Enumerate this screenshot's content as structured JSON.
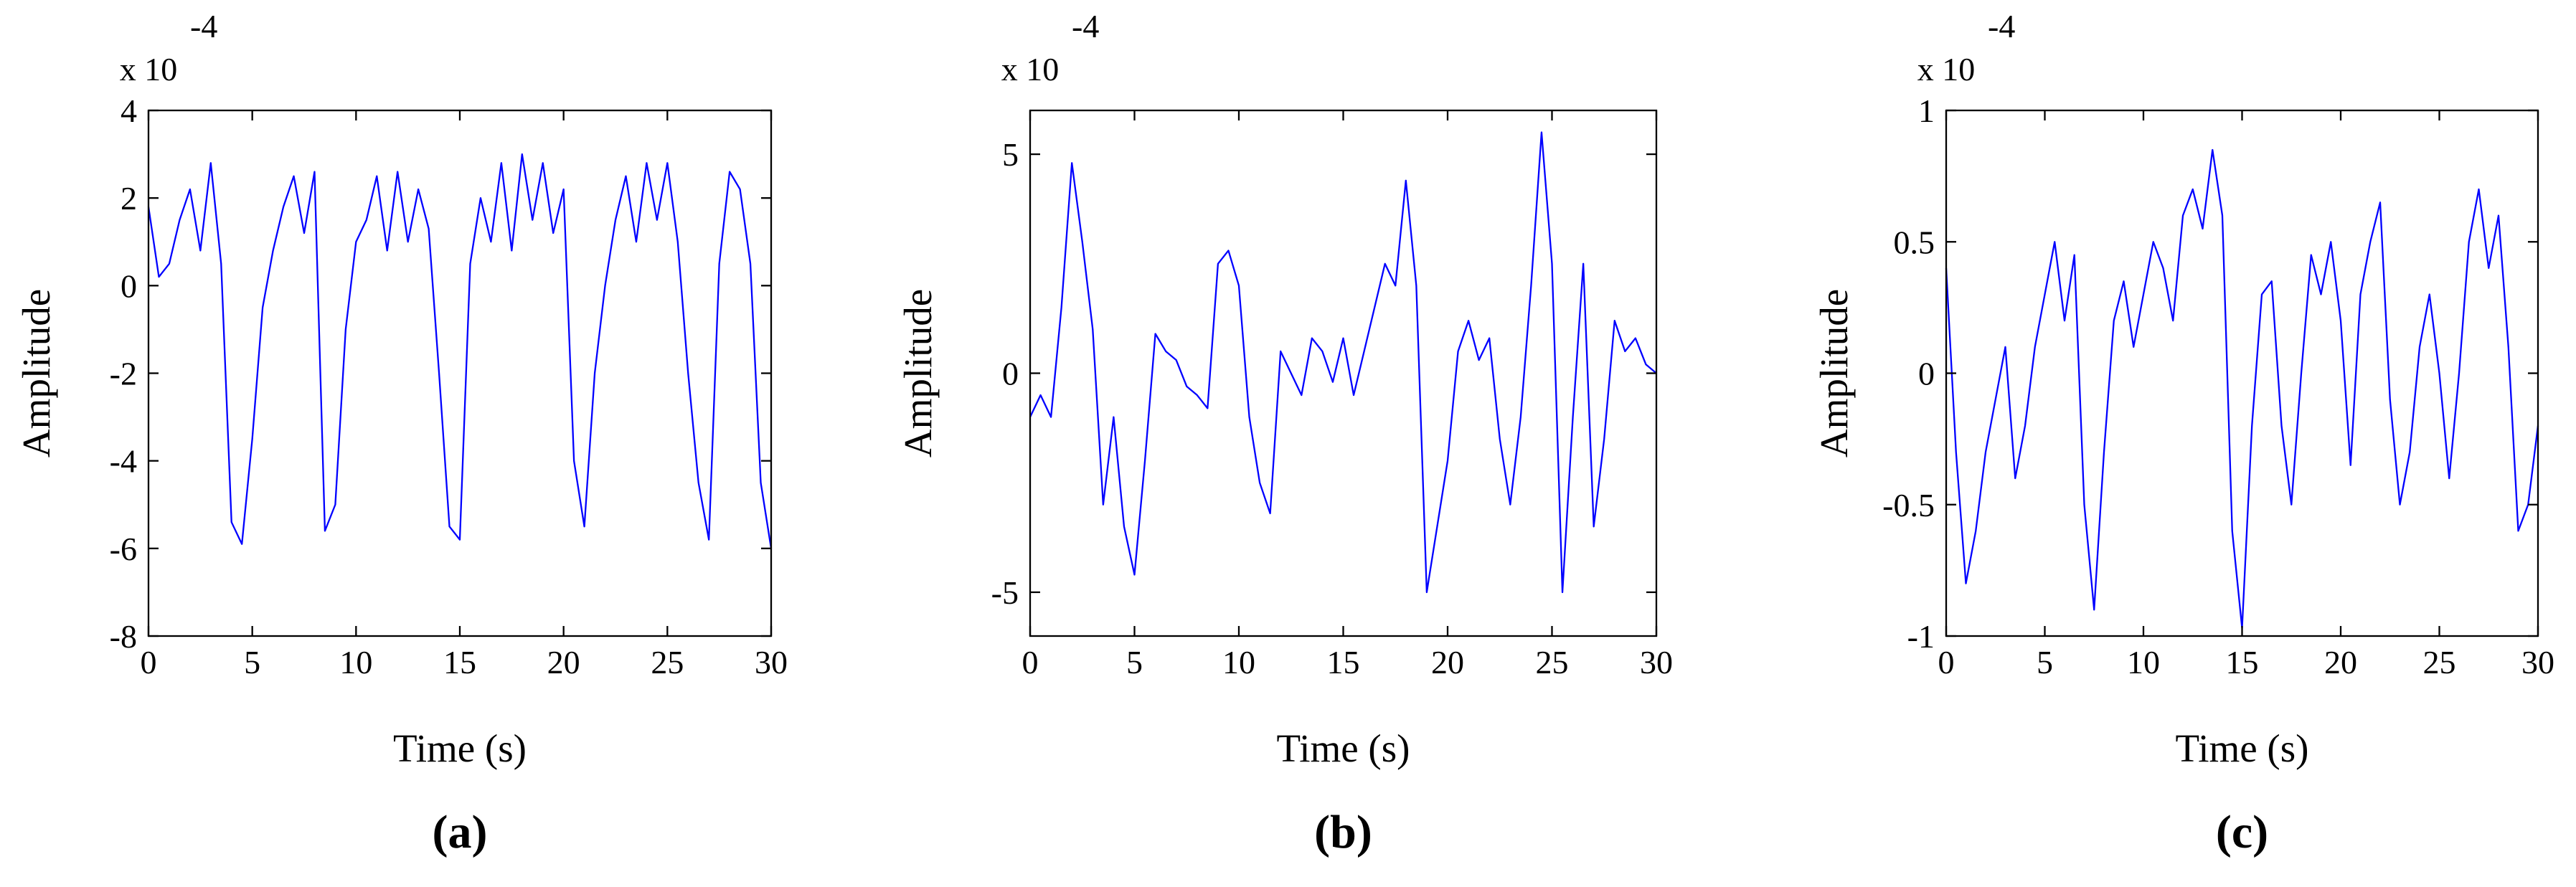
{
  "chart_data": [
    {
      "type": "line",
      "multiplier_base": "x 10",
      "multiplier_exponent": "-4",
      "xlabel": "Time (s)",
      "ylabel": "Amplitude",
      "caption": "(a)",
      "xlim": [
        0,
        30
      ],
      "xticks": [
        0,
        5,
        10,
        15,
        20,
        25,
        30
      ],
      "ylim": [
        -8,
        4
      ],
      "yticks": [
        -8,
        -6,
        -4,
        -2,
        0,
        2,
        4
      ],
      "x": [
        0,
        0.5,
        1,
        1.5,
        2,
        2.5,
        3,
        3.5,
        4,
        4.5,
        5,
        5.5,
        6,
        6.5,
        7,
        7.5,
        8,
        8.5,
        9,
        9.5,
        10,
        10.5,
        11,
        11.5,
        12,
        12.5,
        13,
        13.5,
        14,
        14.5,
        15,
        15.5,
        16,
        16.5,
        17,
        17.5,
        18,
        18.5,
        19,
        19.5,
        20,
        20.5,
        21,
        21.5,
        22,
        22.5,
        23,
        23.5,
        24,
        24.5,
        25,
        25.5,
        26,
        26.5,
        27,
        27.5,
        28,
        28.5,
        29,
        29.5,
        30
      ],
      "series": [
        {
          "color": "#0000ff",
          "values": [
            1.8,
            0.2,
            0.5,
            1.5,
            2.2,
            0.8,
            2.8,
            0.5,
            -5.4,
            -5.9,
            -3.5,
            -0.5,
            0.8,
            1.8,
            2.5,
            1.2,
            2.6,
            -5.6,
            -5.0,
            -1.0,
            1.0,
            1.5,
            2.5,
            0.8,
            2.6,
            1.0,
            2.2,
            1.3,
            -2.0,
            -5.5,
            -5.8,
            0.5,
            2.0,
            1.0,
            2.8,
            0.8,
            3.0,
            1.5,
            2.8,
            1.2,
            2.2,
            -4.0,
            -5.5,
            -2.0,
            0.0,
            1.5,
            2.5,
            1.0,
            2.8,
            1.5,
            2.8,
            1.0,
            -2.0,
            -4.5,
            -5.8,
            0.5,
            2.6,
            2.2,
            0.5,
            -4.5,
            -6.0
          ]
        }
      ]
    },
    {
      "type": "line",
      "multiplier_base": "x 10",
      "multiplier_exponent": "-4",
      "xlabel": "Time (s)",
      "ylabel": "Amplitude",
      "caption": "(b)",
      "xlim": [
        0,
        30
      ],
      "xticks": [
        0,
        5,
        10,
        15,
        20,
        25,
        30
      ],
      "ylim": [
        -6,
        6
      ],
      "yticks": [
        -5,
        0,
        5
      ],
      "x": [
        0,
        0.5,
        1,
        1.5,
        2,
        2.5,
        3,
        3.5,
        4,
        4.5,
        5,
        5.5,
        6,
        6.5,
        7,
        7.5,
        8,
        8.5,
        9,
        9.5,
        10,
        10.5,
        11,
        11.5,
        12,
        12.5,
        13,
        13.5,
        14,
        14.5,
        15,
        15.5,
        16,
        16.5,
        17,
        17.5,
        18,
        18.5,
        19,
        19.5,
        20,
        20.5,
        21,
        21.5,
        22,
        22.5,
        23,
        23.5,
        24,
        24.5,
        25,
        25.5,
        26,
        26.5,
        27,
        27.5,
        28,
        28.5,
        29,
        29.5,
        30
      ],
      "series": [
        {
          "color": "#0000ff",
          "values": [
            -1.0,
            -0.5,
            -1.0,
            1.5,
            4.8,
            3.0,
            1.0,
            -3.0,
            -1.0,
            -3.5,
            -4.6,
            -2.0,
            0.9,
            0.5,
            0.3,
            -0.3,
            -0.5,
            -0.8,
            2.5,
            2.8,
            2.0,
            -1.0,
            -2.5,
            -3.2,
            0.5,
            0.0,
            -0.5,
            0.8,
            0.5,
            -0.2,
            0.8,
            -0.5,
            0.5,
            1.5,
            2.5,
            2.0,
            4.4,
            2.0,
            -5.0,
            -3.5,
            -2.0,
            0.5,
            1.2,
            0.3,
            0.8,
            -1.5,
            -3.0,
            -1.0,
            2.0,
            5.5,
            2.5,
            -5.0,
            -1.0,
            2.5,
            -3.5,
            -1.5,
            1.2,
            0.5,
            0.8,
            0.2,
            0.0
          ]
        }
      ]
    },
    {
      "type": "line",
      "multiplier_base": "x 10",
      "multiplier_exponent": "-4",
      "xlabel": "Time (s)",
      "ylabel": "Amplitude",
      "caption": "(c)",
      "xlim": [
        0,
        30
      ],
      "xticks": [
        0,
        5,
        10,
        15,
        20,
        25,
        30
      ],
      "ylim": [
        -1,
        1
      ],
      "yticks": [
        -1,
        -0.5,
        0,
        0.5,
        1
      ],
      "x": [
        0,
        0.5,
        1,
        1.5,
        2,
        2.5,
        3,
        3.5,
        4,
        4.5,
        5,
        5.5,
        6,
        6.5,
        7,
        7.5,
        8,
        8.5,
        9,
        9.5,
        10,
        10.5,
        11,
        11.5,
        12,
        12.5,
        13,
        13.5,
        14,
        14.5,
        15,
        15.5,
        16,
        16.5,
        17,
        17.5,
        18,
        18.5,
        19,
        19.5,
        20,
        20.5,
        21,
        21.5,
        22,
        22.5,
        23,
        23.5,
        24,
        24.5,
        25,
        25.5,
        26,
        26.5,
        27,
        27.5,
        28,
        28.5,
        29,
        29.5,
        30
      ],
      "series": [
        {
          "color": "#0000ff",
          "values": [
            0.4,
            -0.3,
            -0.8,
            -0.6,
            -0.3,
            -0.1,
            0.1,
            -0.4,
            -0.2,
            0.1,
            0.3,
            0.5,
            0.2,
            0.45,
            -0.5,
            -0.9,
            -0.3,
            0.2,
            0.35,
            0.1,
            0.3,
            0.5,
            0.4,
            0.2,
            0.6,
            0.7,
            0.55,
            0.85,
            0.6,
            -0.6,
            -0.97,
            -0.2,
            0.3,
            0.35,
            -0.2,
            -0.5,
            0.0,
            0.45,
            0.3,
            0.5,
            0.2,
            -0.35,
            0.3,
            0.5,
            0.65,
            -0.1,
            -0.5,
            -0.3,
            0.1,
            0.3,
            0.0,
            -0.4,
            0.0,
            0.5,
            0.7,
            0.4,
            0.6,
            0.1,
            -0.6,
            -0.5,
            -0.2
          ]
        }
      ]
    }
  ]
}
